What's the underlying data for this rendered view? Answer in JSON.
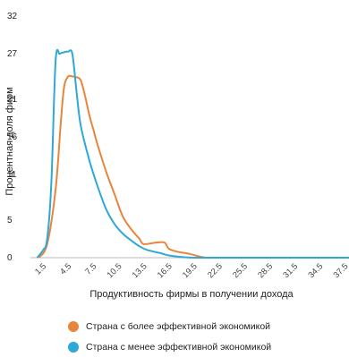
{
  "chart_data": {
    "type": "line",
    "xlabel": "Продуктивность фирмы в получении дохода",
    "ylabel": "Процентная доля фирм",
    "y_ticks": [
      "0",
      "5",
      "11",
      "16",
      "21",
      "27",
      "32"
    ],
    "x_ticks": [
      "1.5",
      "4.5",
      "7.5",
      "10.5",
      "13.5",
      "16.5",
      "19.5",
      "22.5",
      "25.5",
      "28.5",
      "31.5",
      "34.5",
      "37.5"
    ],
    "xlim": [
      0,
      38
    ],
    "ylim": [
      0,
      32
    ],
    "series": [
      {
        "name": "Страна с более эффективной экономикой",
        "color": "#e8853d",
        "x": [
          1.0,
          2.0,
          3.0,
          3.6,
          4.0,
          4.5,
          5.0,
          5.5,
          6.0,
          6.5,
          7.0,
          7.5,
          8.0,
          9.0,
          10.0,
          11.0,
          12.0,
          13.0,
          13.5,
          15.0,
          16.0,
          16.5,
          17.5,
          19.0,
          20.0,
          21.0,
          22.0,
          22.5,
          24.0,
          38.0
        ],
        "y": [
          0,
          1.8,
          9.0,
          17.5,
          22.5,
          24.0,
          24.0,
          23.9,
          23.5,
          21.5,
          19.0,
          17.0,
          15.0,
          11.5,
          8.5,
          5.5,
          3.8,
          2.5,
          1.8,
          2.0,
          2.0,
          1.2,
          0.8,
          0.5,
          0.2,
          0.0,
          0.0,
          0.0,
          0.0,
          0.0
        ]
      },
      {
        "name": "Страна с менее эффективной экономикой",
        "color": "#2fa8d8",
        "x": [
          0.8,
          1.5,
          2.0,
          2.5,
          3.0,
          3.5,
          4.0,
          4.5,
          5.0,
          5.5,
          6.0,
          7.0,
          8.0,
          9.0,
          10.0,
          11.0,
          12.0,
          13.0,
          14.0,
          15.5,
          16.5,
          18.0,
          19.5,
          21.0,
          22.5,
          38.0
        ],
        "y": [
          0,
          1.0,
          2.5,
          10.0,
          26.0,
          27.0,
          27.2,
          27.3,
          27.0,
          22.0,
          17.5,
          13.0,
          9.5,
          6.5,
          4.5,
          3.2,
          2.3,
          1.5,
          1.0,
          0.6,
          0.3,
          0.1,
          0.0,
          0.0,
          0.0,
          0.0
        ]
      }
    ],
    "legend_position": "bottom-left",
    "grid": false
  }
}
